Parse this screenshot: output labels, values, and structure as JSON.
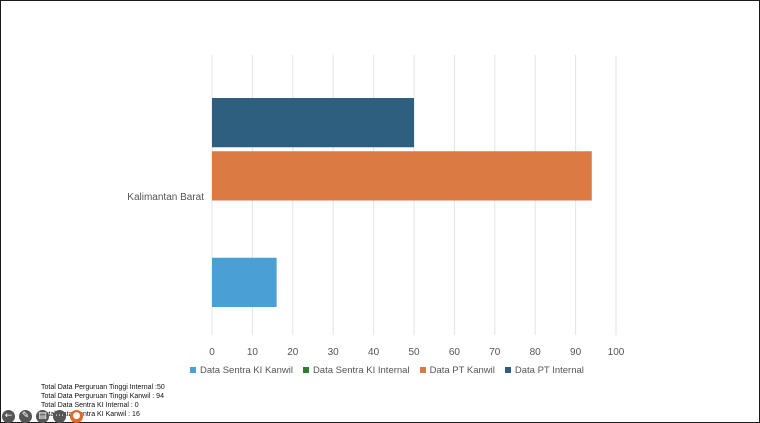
{
  "chart_data": {
    "type": "bar",
    "orientation": "horizontal",
    "categories": [
      "Kalimantan Barat"
    ],
    "series": [
      {
        "name": "Data Sentra KI Kanwil",
        "values": [
          16
        ],
        "color": "#4a9fd5"
      },
      {
        "name": "Data Sentra KI Internal",
        "values": [
          0
        ],
        "color": "#2e7d32"
      },
      {
        "name": "Data PT Kanwil",
        "values": [
          94
        ],
        "color": "#dc7a43"
      },
      {
        "name": "Data PT Internal",
        "values": [
          50
        ],
        "color": "#2e5f7f"
      }
    ],
    "xlim": [
      0,
      100
    ],
    "xticks": [
      "0",
      "10",
      "20",
      "30",
      "40",
      "50",
      "60",
      "70",
      "80",
      "90",
      "100"
    ],
    "grid": true,
    "legend_position": "bottom"
  },
  "notes": [
    "Total Data Perguruan Tinggi Internal :50",
    "Total Data Perguruan Tinggi Kanwil : 94",
    "Total Data Sentra KI Internal : 0",
    "Total Data Sentra KI Kanwil : 16"
  ],
  "toolbar": {
    "icons": [
      "back-arrow-icon",
      "pen-icon",
      "captions-icon",
      "more-icon",
      "presenter-icon"
    ]
  }
}
